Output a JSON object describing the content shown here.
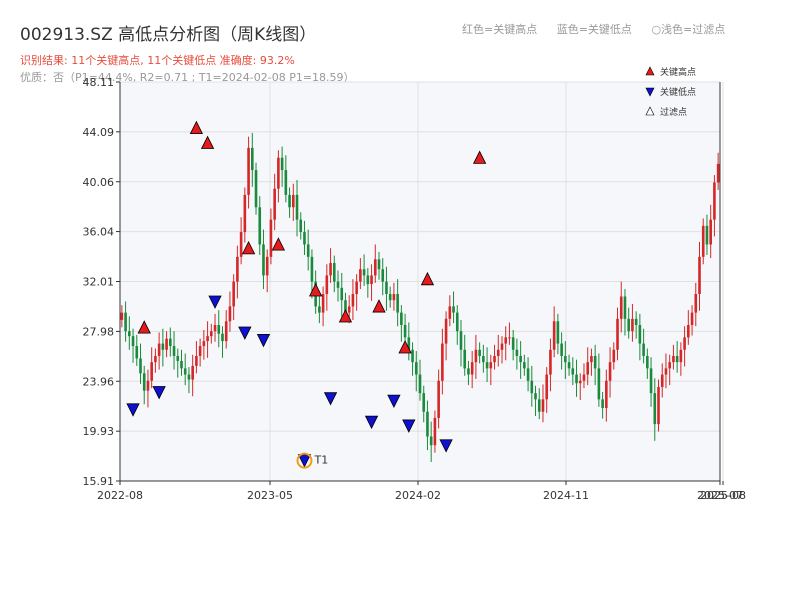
{
  "header": {
    "title": "002913.SZ 高低点分析图（周K线图）",
    "result": "识别结果: 11个关键高点, 11个关键低点   准确度: 93.2%",
    "quality": "优质：否（P1=44.4%, R2=0.71 ; T1=2024-02-08 P1=18.59）"
  },
  "top_legend": {
    "red": "红色=关键高点",
    "blue": "蓝色=关键低点",
    "light": "○浅色=过滤点"
  },
  "colors": {
    "up": "#d62728",
    "down": "#1a8a3c",
    "high_marker": "#e41a1c",
    "low_marker": "#1010d0",
    "t1_marker": "#f39c12",
    "grid": "#e0e0e0",
    "plot_bg": "#f5f7fa"
  },
  "chart_data": {
    "type": "candlestick",
    "title": "002913.SZ 高低点分析图（周K线图）",
    "x_ticks": [
      "2022-08",
      "2023-05",
      "2024-02",
      "2024-11",
      "2025-07",
      "2025-08"
    ],
    "y_ticks": [
      15.91,
      19.93,
      23.96,
      27.98,
      32.01,
      36.04,
      40.06,
      44.09,
      48.11
    ],
    "ylim": [
      15.91,
      48.11
    ],
    "legend": {
      "position": "top-right",
      "entries": [
        "关键高点",
        "关键低点",
        "过滤点"
      ]
    },
    "candles_note": "approximate weekly close prices, one value per week from 2022-08 to 2025-08",
    "closes": [
      29.5,
      28.0,
      27.6,
      26.8,
      25.8,
      24.6,
      23.2,
      24.0,
      25.5,
      26.0,
      27.0,
      26.5,
      27.4,
      26.8,
      26.0,
      25.6,
      25.0,
      24.5,
      24.1,
      25.2,
      26.0,
      26.8,
      27.2,
      27.6,
      28.0,
      28.5,
      27.8,
      27.2,
      28.8,
      30.0,
      32.0,
      34.0,
      36.0,
      39.0,
      42.8,
      41.0,
      38.0,
      35.0,
      32.5,
      34.0,
      37.0,
      39.5,
      42.0,
      41.0,
      39.0,
      38.0,
      39.0,
      37.0,
      36.0,
      35.0,
      34.0,
      32.0,
      30.0,
      29.5,
      31.0,
      32.5,
      33.5,
      32.0,
      31.5,
      30.5,
      29.5,
      30.0,
      31.0,
      32.0,
      33.0,
      32.5,
      31.8,
      32.5,
      33.8,
      33.0,
      32.0,
      31.0,
      30.5,
      31.0,
      29.5,
      28.5,
      27.5,
      26.5,
      25.5,
      24.5,
      23.0,
      21.5,
      19.5,
      18.8,
      21.0,
      24.0,
      27.0,
      29.0,
      30.0,
      29.5,
      28.0,
      26.5,
      25.0,
      24.5,
      25.5,
      26.5,
      26.0,
      25.5,
      25.0,
      25.5,
      26.0,
      26.5,
      27.0,
      27.5,
      27.5,
      26.5,
      26.0,
      25.5,
      25.0,
      24.0,
      23.0,
      22.5,
      21.5,
      22.5,
      24.5,
      26.5,
      28.8,
      27.0,
      26.0,
      25.5,
      25.0,
      24.5,
      23.8,
      24.0,
      24.5,
      25.5,
      26.0,
      25.0,
      22.5,
      21.8,
      24.0,
      25.5,
      26.5,
      29.0,
      30.8,
      29.0,
      28.0,
      29.0,
      28.5,
      27.0,
      26.0,
      25.0,
      23.0,
      20.5,
      23.5,
      24.5,
      25.0,
      25.5,
      26.0,
      25.5,
      26.5,
      27.5,
      28.5,
      29.5,
      31.0,
      34.0,
      36.5,
      35.0,
      37.0,
      40.0,
      41.5
    ],
    "key_highs": [
      {
        "i": 6,
        "price": 27.6,
        "label": "关键高点"
      },
      {
        "i": 20,
        "price": 43.7,
        "label": "关键高点"
      },
      {
        "i": 23,
        "price": 42.5,
        "label": "关键高点"
      },
      {
        "i": 34,
        "price": 34.0,
        "label": "关键高点"
      },
      {
        "i": 42,
        "price": 34.3,
        "label": "关键高点"
      },
      {
        "i": 52,
        "price": 30.6,
        "label": "关键高点"
      },
      {
        "i": 60,
        "price": 28.5,
        "label": "关键高点"
      },
      {
        "i": 69,
        "price": 29.3,
        "label": "关键高点"
      },
      {
        "i": 76,
        "price": 26.0,
        "label": "关键高点"
      },
      {
        "i": 82,
        "price": 31.5,
        "label": "关键高点"
      },
      {
        "i": 96,
        "price": 41.3,
        "label": "关键高点"
      }
    ],
    "key_lows": [
      {
        "i": 3,
        "price": 22.3
      },
      {
        "i": 10,
        "price": 23.7
      },
      {
        "i": 25,
        "price": 31.0
      },
      {
        "i": 33,
        "price": 28.5
      },
      {
        "i": 38,
        "price": 27.9
      },
      {
        "i": 49,
        "price": 18.2
      },
      {
        "i": 56,
        "price": 23.2
      },
      {
        "i": 67,
        "price": 21.3
      },
      {
        "i": 73,
        "price": 23.0
      },
      {
        "i": 77,
        "price": 21.0
      },
      {
        "i": 87,
        "price": 19.4
      }
    ],
    "annotation": {
      "label": "T1",
      "i": 49,
      "price": 18.2
    }
  }
}
